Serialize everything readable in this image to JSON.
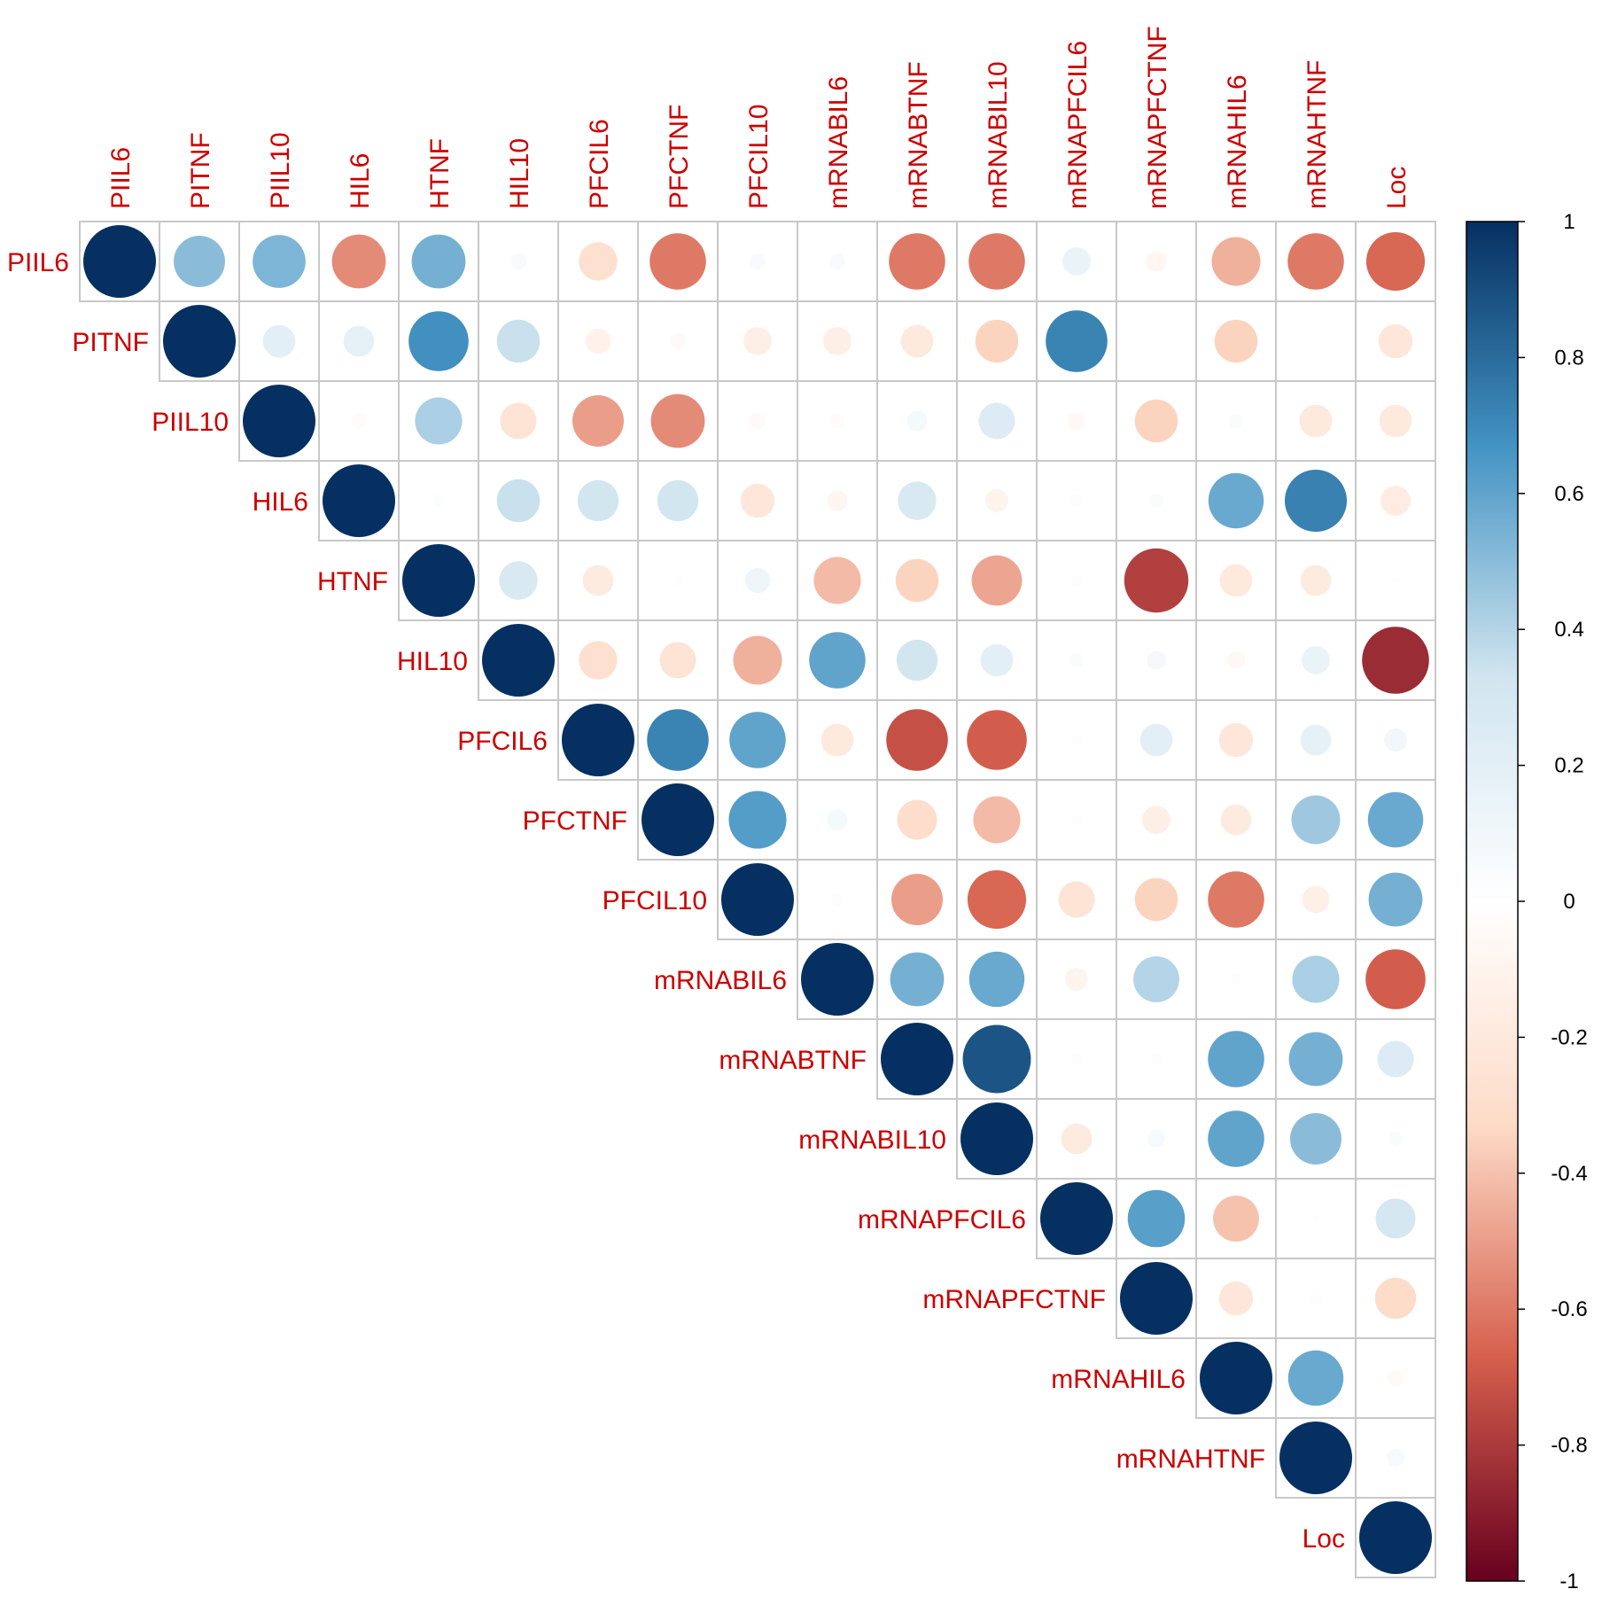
{
  "chart_data": {
    "type": "heatmap",
    "subtype": "correlation-upper-circles",
    "title": "",
    "variables": [
      "PIIL6",
      "PITNF",
      "PIIL10",
      "HIL6",
      "HTNF",
      "HIL10",
      "PFCIL6",
      "PFCTNF",
      "PFCIL10",
      "mRNABIL6",
      "mRNABTNF",
      "mRNABIL10",
      "mRNAPFCIL6",
      "mRNAPFCTNF",
      "mRNAHIL6",
      "mRNAHTNF",
      "Loc"
    ],
    "matrix_upper": [
      [
        1,
        0.5,
        0.53,
        -0.55,
        0.55,
        0.05,
        -0.28,
        -0.6,
        0.05,
        0.05,
        -0.6,
        -0.6,
        0.15,
        -0.08,
        -0.45,
        -0.6,
        -0.65
      ],
      [
        1,
        0.2,
        0.18,
        0.68,
        0.35,
        -0.12,
        -0.05,
        -0.15,
        -0.15,
        -0.2,
        -0.35,
        0.72,
        0,
        -0.35,
        0,
        -0.22
      ],
      [
        1,
        -0.04,
        0.42,
        -0.25,
        -0.5,
        -0.55,
        -0.05,
        -0.04,
        0.08,
        0.25,
        -0.06,
        -0.35,
        0.04,
        -0.2,
        -0.2
      ],
      [
        1,
        0.03,
        0.35,
        0.32,
        0.32,
        -0.22,
        -0.08,
        0.28,
        -0.1,
        0.03,
        0.04,
        0.58,
        0.73,
        -0.17
      ],
      [
        1,
        0.28,
        -0.18,
        0.02,
        0.12,
        -0.42,
        -0.35,
        -0.48,
        0.02,
        -0.78,
        -0.2,
        -0.18,
        0.01
      ],
      [
        1,
        -0.28,
        -0.25,
        -0.45,
        0.6,
        0.32,
        0.2,
        0.04,
        0.07,
        -0.06,
        0.15,
        -0.85
      ],
      [
        1,
        0.72,
        0.6,
        -0.2,
        -0.72,
        -0.68,
        0.02,
        0.2,
        -0.22,
        0.18,
        0.1
      ],
      [
        1,
        0.63,
        0.08,
        -0.3,
        -0.42,
        0.02,
        -0.15,
        -0.18,
        0.45,
        0.58
      ],
      [
        1,
        0.03,
        -0.5,
        -0.65,
        -0.25,
        -0.35,
        -0.6,
        -0.14,
        0.55
      ],
      [
        1,
        0.55,
        0.58,
        -0.1,
        0.4,
        0.02,
        0.42,
        -0.68
      ],
      [
        1,
        0.88,
        0.02,
        0.02,
        0.6,
        0.55,
        0.25
      ],
      [
        1,
        -0.18,
        0.06,
        0.6,
        0.5,
        0.04
      ],
      [
        1,
        0.62,
        -0.4,
        0.01,
        0.3
      ],
      [
        1,
        -0.22,
        0.03,
        -0.32
      ],
      [
        1,
        0.58,
        -0.05
      ],
      [
        1,
        0.06
      ],
      [
        1
      ]
    ],
    "colorbar": {
      "range": [
        -1,
        1
      ],
      "ticks": [
        "1",
        "0.8",
        "0.6",
        "0.4",
        "0.2",
        "0",
        "-0.2",
        "-0.4",
        "-0.6",
        "-0.8",
        "-1"
      ],
      "colors": {
        "neg_dark": "#67001f",
        "neg_mid": "#d6604d",
        "neg_light": "#fddbc7",
        "zero": "#ffffff",
        "pos_light": "#d1e5f0",
        "pos_mid": "#4393c3",
        "pos_dark": "#053061"
      }
    },
    "label_color": "#cc0000",
    "grid_color": "#c8c8c8"
  }
}
